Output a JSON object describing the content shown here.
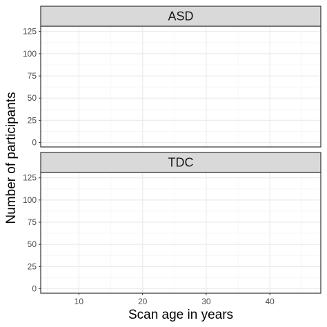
{
  "chart_data": {
    "type": "bar",
    "facet_layout": "stacked-vertical",
    "xlabel": "Scan age in years",
    "ylabel": "Number of participants",
    "xlim": [
      4,
      48
    ],
    "ylim": [
      -5,
      131
    ],
    "x_ticks": [
      10,
      20,
      30,
      40
    ],
    "x_minor": [
      5,
      15,
      25,
      35,
      45
    ],
    "y_ticks": [
      0,
      25,
      50,
      75,
      100,
      125
    ],
    "y_minor": [
      12.5,
      37.5,
      62.5,
      87.5,
      112.5
    ],
    "grid": true,
    "panels": [
      {
        "name": "ASD",
        "bins": [],
        "values": []
      },
      {
        "name": "TDC",
        "bins": [],
        "values": []
      }
    ]
  },
  "colors": {
    "panel_border": "#333333",
    "grid_major": "#ebebeb",
    "grid_minor": "#f5f5f5",
    "strip_fill": "#d9d9d9",
    "text_tick": "#4d4d4d"
  }
}
